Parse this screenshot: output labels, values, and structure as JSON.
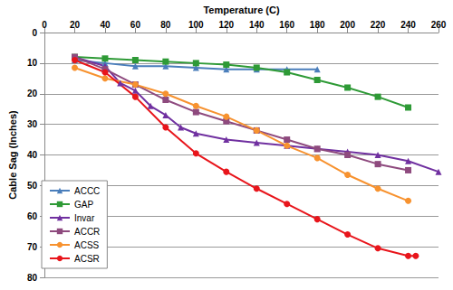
{
  "chart_data": {
    "type": "line",
    "xlabel": "Temperature (C)",
    "ylabel": "Cable Sag (Inches)",
    "xlim": [
      0,
      260
    ],
    "xticks": [
      0,
      20,
      40,
      60,
      80,
      100,
      120,
      140,
      160,
      180,
      200,
      220,
      240,
      260
    ],
    "ylim": [
      0,
      80
    ],
    "yticks": [
      0,
      10,
      20,
      30,
      40,
      50,
      60,
      70,
      80
    ],
    "grid": true,
    "legend": "lower left",
    "series": [
      {
        "name": "ACCC",
        "color": "#4a7ebb",
        "marker": "triangle",
        "x": [
          20,
          40,
          60,
          80,
          100,
          120,
          140,
          160,
          180
        ],
        "values": [
          9,
          10,
          11,
          11,
          11.5,
          12,
          12,
          12,
          12
        ]
      },
      {
        "name": "GAP",
        "color": "#2e9a36",
        "marker": "square",
        "x": [
          20,
          40,
          60,
          80,
          100,
          120,
          140,
          160,
          180,
          200,
          220,
          240
        ],
        "values": [
          8,
          8.5,
          9,
          9.5,
          10,
          10.5,
          11.5,
          13,
          15.5,
          18,
          21,
          24.5
        ]
      },
      {
        "name": "Invar",
        "color": "#7030a0",
        "marker": "triangle",
        "x": [
          20,
          40,
          50,
          60,
          70,
          80,
          90,
          100,
          120,
          140,
          160,
          180,
          200,
          220,
          240,
          260
        ],
        "values": [
          8,
          11,
          16.5,
          19,
          24,
          27,
          31,
          33,
          35,
          36,
          37,
          38,
          39,
          40,
          42,
          45.5
        ]
      },
      {
        "name": "ACCR",
        "color": "#8e4a7e",
        "marker": "square",
        "x": [
          20,
          40,
          60,
          80,
          100,
          120,
          140,
          160,
          180,
          200,
          220,
          240
        ],
        "values": [
          8,
          12,
          17,
          22,
          26,
          29,
          32,
          35,
          38,
          40,
          43,
          45
        ]
      },
      {
        "name": "ACSS",
        "color": "#f7922f",
        "marker": "circle",
        "x": [
          20,
          40,
          60,
          80,
          100,
          120,
          140,
          160,
          180,
          200,
          220,
          240
        ],
        "values": [
          11.5,
          15,
          17,
          20,
          24,
          27.5,
          32,
          37,
          41,
          46.5,
          51,
          55
        ]
      },
      {
        "name": "ACSR",
        "color": "#e8151b",
        "marker": "circle",
        "x": [
          20,
          40,
          60,
          80,
          100,
          120,
          140,
          160,
          180,
          200,
          220,
          240,
          245
        ],
        "values": [
          9,
          13,
          21,
          31,
          39.5,
          45.5,
          51,
          56,
          61,
          66,
          70.5,
          73,
          73
        ]
      }
    ]
  }
}
